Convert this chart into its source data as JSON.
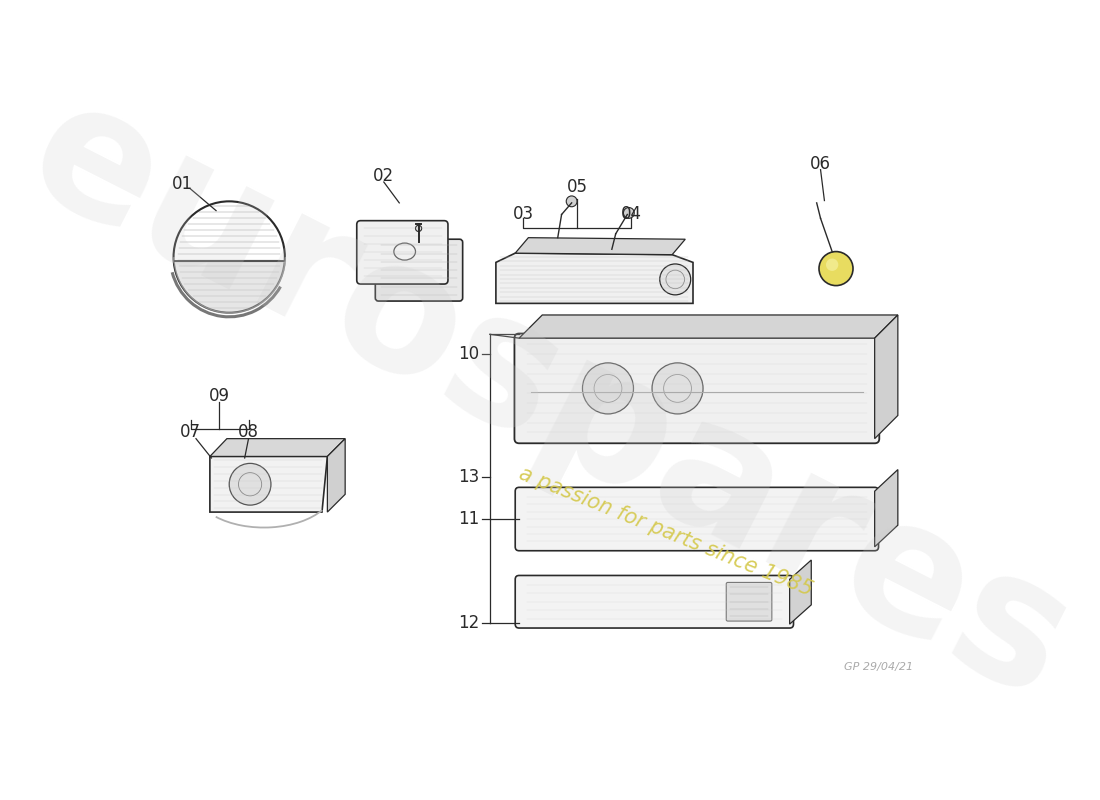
{
  "bg_color": "#ffffff",
  "watermark_text": "eurospares",
  "watermark_subtext": "a passion for parts since 1985",
  "signature_text": "GP 29/04/21",
  "watermark_color": "#cccccc",
  "watermark_yellow": "#d4c84a",
  "line_color": "#2a2a2a",
  "sketch_gray": "#888888",
  "light_gray": "#cccccc",
  "fig_width": 11.0,
  "fig_height": 8.0
}
